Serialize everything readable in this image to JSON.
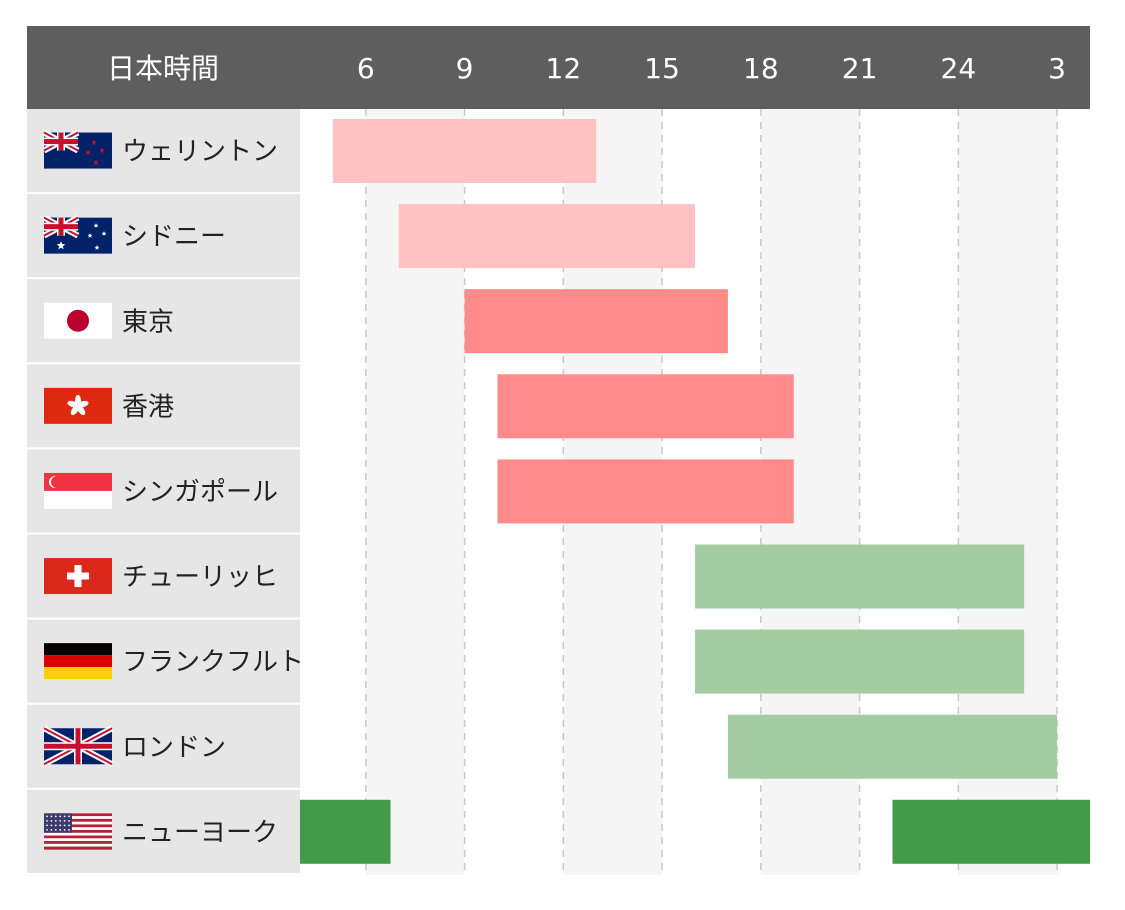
{
  "chart_data": {
    "type": "gantt",
    "header_label": "日本時間",
    "x_axis": {
      "ticks": [
        6,
        9,
        12,
        15,
        18,
        21,
        24,
        3
      ],
      "tick_labels": [
        "6",
        "9",
        "12",
        "15",
        "18",
        "21",
        "24",
        "3"
      ],
      "range": [
        4,
        28
      ],
      "unit": "hours (JST)",
      "grid": "dashed vertical at each tick"
    },
    "rows": [
      {
        "city": "ウェリントン",
        "flag": "new-zealand-flag",
        "sessions": [
          [
            5,
            13
          ]
        ],
        "color": "#ffc1c1"
      },
      {
        "city": "シドニー",
        "flag": "australia-flag",
        "sessions": [
          [
            7,
            16
          ]
        ],
        "color": "#ffc1c1"
      },
      {
        "city": "東京",
        "flag": "japan-flag",
        "sessions": [
          [
            9,
            17
          ]
        ],
        "color": "#ff8a8a"
      },
      {
        "city": "香港",
        "flag": "hong-kong-flag",
        "sessions": [
          [
            10,
            19
          ]
        ],
        "color": "#ff8a8a"
      },
      {
        "city": "シンガポール",
        "flag": "singapore-flag",
        "sessions": [
          [
            10,
            19
          ]
        ],
        "color": "#ff8a8a"
      },
      {
        "city": "チューリッヒ",
        "flag": "switzerland-flag",
        "sessions": [
          [
            16,
            26
          ]
        ],
        "color": "#a3cca3"
      },
      {
        "city": "フランクフルト",
        "flag": "germany-flag",
        "sessions": [
          [
            16,
            26
          ]
        ],
        "color": "#a3cca3"
      },
      {
        "city": "ロンドン",
        "flag": "united-kingdom-flag",
        "sessions": [
          [
            17,
            27
          ]
        ],
        "color": "#a3cca3"
      },
      {
        "city": "ニューヨーク",
        "flag": "united-states-flag",
        "sessions": [
          [
            4,
            6.75
          ],
          [
            22,
            28
          ]
        ],
        "color": "#439a48"
      }
    ]
  },
  "colors": {
    "header_bg": "#5e5e5e",
    "label_bg": "#e6e6e6",
    "stripe_bg": "#f5f5f5",
    "grid": "#c8c8c8"
  }
}
